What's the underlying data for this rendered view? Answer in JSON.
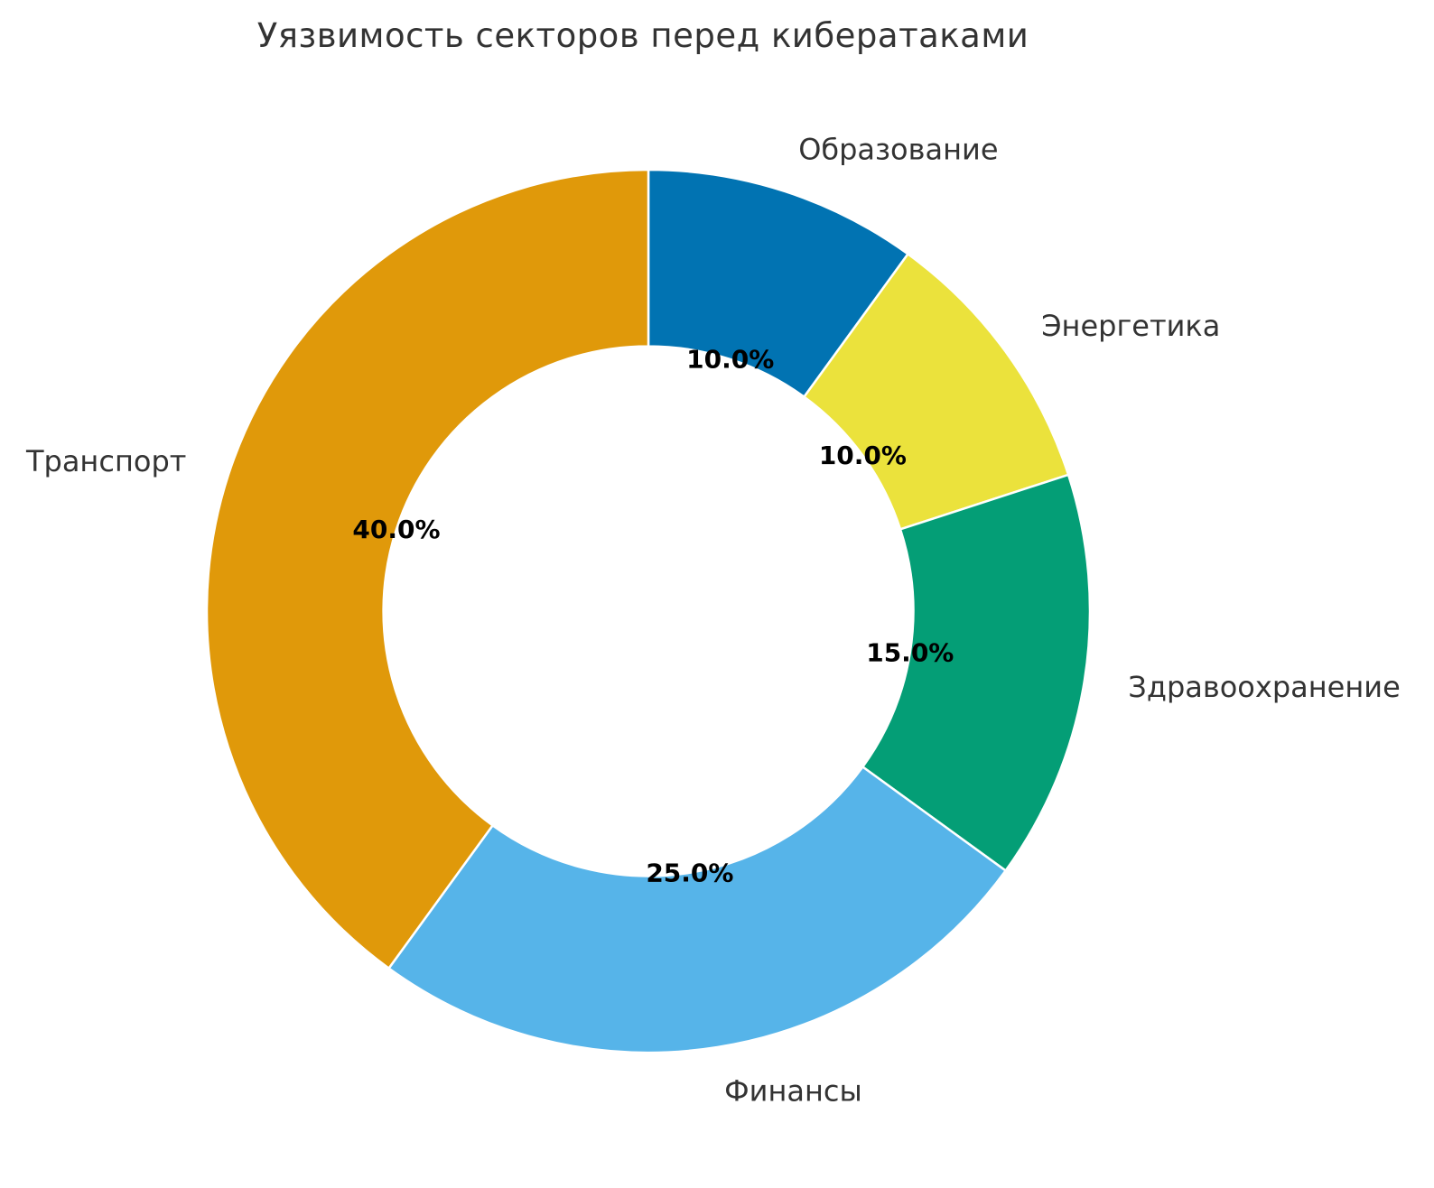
{
  "chart_data": {
    "type": "pie",
    "subtype": "donut",
    "title": "Уязвимость секторов перед кибератаками",
    "categories": [
      "Образование",
      "Энергетика",
      "Здравоохранение",
      "Финансы",
      "Транспорт"
    ],
    "values": [
      10.0,
      10.0,
      15.0,
      25.0,
      40.0
    ],
    "value_labels": [
      "10.0%",
      "10.0%",
      "15.0%",
      "25.0%",
      "40.0%"
    ],
    "colors": [
      "#0173b2",
      "#ebe23c",
      "#049e76",
      "#56b4e9",
      "#e0990a"
    ],
    "units": "%",
    "start_angle": 90,
    "direction": "clockwise",
    "donut_hole_ratio": 0.6,
    "legend": "none",
    "background_color": "#ffffff",
    "title_color": "#333333",
    "category_label_color": "#333333",
    "pct_label_color": "#000000",
    "wedge_edge_color": "#ffffff"
  }
}
